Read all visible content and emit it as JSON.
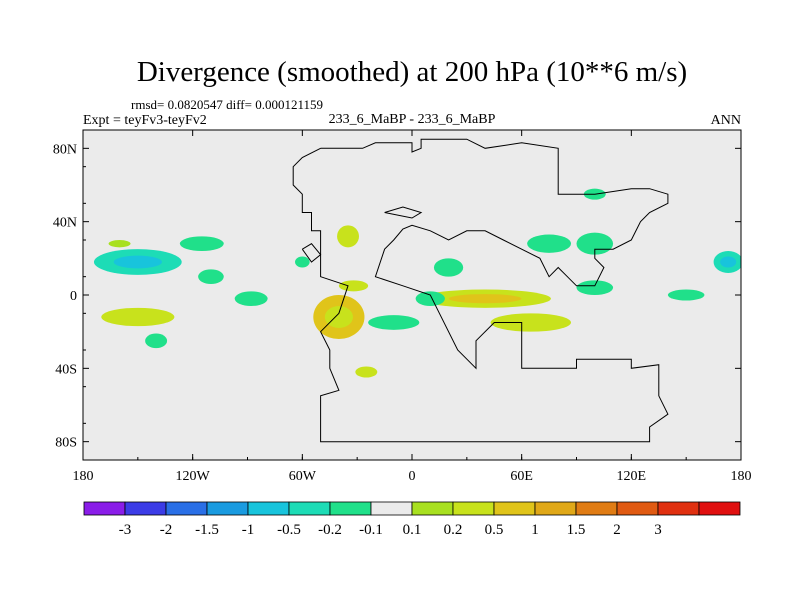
{
  "chart_data": {
    "type": "heatmap",
    "title": "Divergence (smoothed) at 200 hPa (10**6 m/s)",
    "stats_text": "rmsd= 0.0820547 diff= 0.000121159",
    "left_label": "Expt = teyFv3-teyFv2",
    "center_label": "233_6_MaBP - 233_6_MaBP",
    "right_label": "ANN",
    "x_range": [
      -180,
      180
    ],
    "y_range": [
      -90,
      90
    ],
    "x_ticks": [
      {
        "value": -180,
        "label": "180"
      },
      {
        "value": -120,
        "label": "120W"
      },
      {
        "value": -60,
        "label": "60W"
      },
      {
        "value": 0,
        "label": "0"
      },
      {
        "value": 60,
        "label": "60E"
      },
      {
        "value": 120,
        "label": "120E"
      },
      {
        "value": 180,
        "label": "180"
      }
    ],
    "y_ticks": [
      {
        "value": 80,
        "label": "80N"
      },
      {
        "value": 40,
        "label": "40N"
      },
      {
        "value": 0,
        "label": "0"
      },
      {
        "value": -40,
        "label": "40S"
      },
      {
        "value": -80,
        "label": "80S"
      }
    ],
    "colorbar": {
      "colors": [
        "#8a1de8",
        "#3c3ce6",
        "#2a6fe6",
        "#1a9be0",
        "#18c4dc",
        "#1ddcb6",
        "#20e08a",
        "#ebebeb",
        "#a8e020",
        "#c8e21c",
        "#e0c41a",
        "#e0a818",
        "#e07c14",
        "#e05a12",
        "#e03010",
        "#e01010"
      ],
      "labels": [
        "-3",
        "-2",
        "-1.5",
        "-1",
        "-0.5",
        "-0.2",
        "-0.1",
        "0.1",
        "0.2",
        "0.5",
        "1",
        "1.5",
        "2",
        "3"
      ]
    },
    "anomaly_regions": [
      {
        "lon": -150,
        "lat": 18,
        "rlon": 24,
        "rlat": 7,
        "level": "-0.2",
        "color": "#1ddcb6",
        "inner": "#18c4dc"
      },
      {
        "lon": -115,
        "lat": 28,
        "rlon": 12,
        "rlat": 4,
        "level": "-0.1",
        "color": "#20e08a"
      },
      {
        "lon": -160,
        "lat": 28,
        "rlon": 6,
        "rlat": 2,
        "level": "0.1",
        "color": "#a8e020"
      },
      {
        "lon": -150,
        "lat": -12,
        "rlon": 20,
        "rlat": 5,
        "level": "0.2",
        "color": "#c8e21c"
      },
      {
        "lon": -140,
        "lat": -25,
        "rlon": 6,
        "rlat": 4,
        "level": "-0.1",
        "color": "#20e08a"
      },
      {
        "lon": -110,
        "lat": 10,
        "rlon": 7,
        "rlat": 4,
        "level": "-0.1",
        "color": "#20e08a"
      },
      {
        "lon": -88,
        "lat": -2,
        "rlon": 9,
        "rlat": 4,
        "level": "-0.1",
        "color": "#20e08a"
      },
      {
        "lon": -60,
        "lat": 18,
        "rlon": 4,
        "rlat": 3,
        "level": "-0.1",
        "color": "#20e08a"
      },
      {
        "lon": -35,
        "lat": 32,
        "rlon": 6,
        "rlat": 6,
        "level": "0.2",
        "color": "#c8e21c"
      },
      {
        "lon": -40,
        "lat": -12,
        "rlon": 14,
        "rlat": 12,
        "level": "0.5",
        "color": "#e0c41a",
        "inner": "#c8e21c"
      },
      {
        "lon": -32,
        "lat": 5,
        "rlon": 8,
        "rlat": 3,
        "level": "0.2",
        "color": "#c8e21c"
      },
      {
        "lon": -25,
        "lat": -42,
        "rlon": 6,
        "rlat": 3,
        "level": "0.2",
        "color": "#c8e21c"
      },
      {
        "lon": -10,
        "lat": -15,
        "rlon": 14,
        "rlat": 4,
        "level": "-0.1",
        "color": "#20e08a"
      },
      {
        "lon": 40,
        "lat": -2,
        "rlon": 36,
        "rlat": 5,
        "level": "0.2",
        "color": "#c8e21c",
        "inner": "#e0c41a"
      },
      {
        "lon": 65,
        "lat": -15,
        "rlon": 22,
        "rlat": 5,
        "level": "0.2",
        "color": "#c8e21c"
      },
      {
        "lon": 10,
        "lat": -2,
        "rlon": 8,
        "rlat": 4,
        "level": "-0.1",
        "color": "#20e08a"
      },
      {
        "lon": 75,
        "lat": 28,
        "rlon": 12,
        "rlat": 5,
        "level": "-0.1",
        "color": "#20e08a"
      },
      {
        "lon": 100,
        "lat": 28,
        "rlon": 10,
        "rlat": 6,
        "level": "-0.1",
        "color": "#20e08a"
      },
      {
        "lon": 20,
        "lat": 15,
        "rlon": 8,
        "rlat": 5,
        "level": "-0.1",
        "color": "#20e08a"
      },
      {
        "lon": 150,
        "lat": 0,
        "rlon": 10,
        "rlat": 3,
        "level": "-0.1",
        "color": "#20e08a"
      },
      {
        "lon": 173,
        "lat": 18,
        "rlon": 8,
        "rlat": 6,
        "level": "-0.2",
        "color": "#1ddcb6",
        "inner": "#18c4dc"
      },
      {
        "lon": 100,
        "lat": 55,
        "rlon": 6,
        "rlat": 3,
        "level": "-0.1",
        "color": "#20e08a"
      },
      {
        "lon": 100,
        "lat": 4,
        "rlon": 10,
        "rlat": 4,
        "level": "-0.1",
        "color": "#20e08a"
      }
    ],
    "coastline": [
      [
        [
          -50,
          80
        ],
        [
          -27,
          80
        ],
        [
          -20,
          83
        ],
        [
          0,
          83
        ],
        [
          0,
          78
        ],
        [
          5,
          80
        ],
        [
          5,
          85
        ],
        [
          30,
          85
        ],
        [
          40,
          80
        ],
        [
          60,
          83
        ],
        [
          80,
          80
        ],
        [
          80,
          55
        ],
        [
          100,
          55
        ],
        [
          120,
          58
        ],
        [
          130,
          58
        ],
        [
          140,
          55
        ],
        [
          140,
          50
        ],
        [
          130,
          45
        ],
        [
          125,
          40
        ],
        [
          120,
          30
        ],
        [
          110,
          25
        ],
        [
          100,
          25
        ],
        [
          100,
          20
        ],
        [
          105,
          15
        ],
        [
          100,
          5
        ],
        [
          90,
          5
        ],
        [
          85,
          10
        ],
        [
          80,
          15
        ],
        [
          75,
          10
        ],
        [
          70,
          20
        ],
        [
          60,
          25
        ],
        [
          50,
          30
        ],
        [
          40,
          35
        ],
        [
          30,
          35
        ],
        [
          20,
          30
        ],
        [
          10,
          35
        ],
        [
          0,
          38
        ],
        [
          -5,
          36
        ],
        [
          -10,
          30
        ],
        [
          -15,
          25
        ],
        [
          -20,
          10
        ],
        [
          -5,
          5
        ],
        [
          10,
          0
        ],
        [
          15,
          -10
        ],
        [
          25,
          -30
        ],
        [
          35,
          -40
        ],
        [
          35,
          -25
        ],
        [
          45,
          -15
        ],
        [
          60,
          -15
        ],
        [
          60,
          -40
        ],
        [
          90,
          -40
        ],
        [
          90,
          -35
        ],
        [
          110,
          -35
        ],
        [
          120,
          -35
        ],
        [
          120,
          -40
        ],
        [
          135,
          -38
        ],
        [
          135,
          -55
        ],
        [
          140,
          -65
        ],
        [
          130,
          -72
        ],
        [
          130,
          -80
        ],
        [
          -50,
          -80
        ],
        [
          -50,
          -65
        ],
        [
          -50,
          -55
        ],
        [
          -40,
          -52
        ],
        [
          -45,
          -40
        ],
        [
          -45,
          -30
        ],
        [
          -50,
          -20
        ],
        [
          -40,
          -10
        ],
        [
          -35,
          5
        ],
        [
          -50,
          10
        ],
        [
          -50,
          35
        ],
        [
          -55,
          35
        ],
        [
          -55,
          45
        ],
        [
          -60,
          45
        ],
        [
          -60,
          55
        ],
        [
          -65,
          60
        ],
        [
          -65,
          70
        ],
        [
          -60,
          75
        ],
        [
          -50,
          80
        ]
      ],
      [
        [
          -60,
          25
        ],
        [
          -55,
          28
        ],
        [
          -50,
          22
        ],
        [
          -55,
          18
        ],
        [
          -60,
          25
        ]
      ],
      [
        [
          -15,
          45
        ],
        [
          -5,
          48
        ],
        [
          5,
          45
        ],
        [
          0,
          42
        ],
        [
          -15,
          45
        ]
      ]
    ]
  }
}
